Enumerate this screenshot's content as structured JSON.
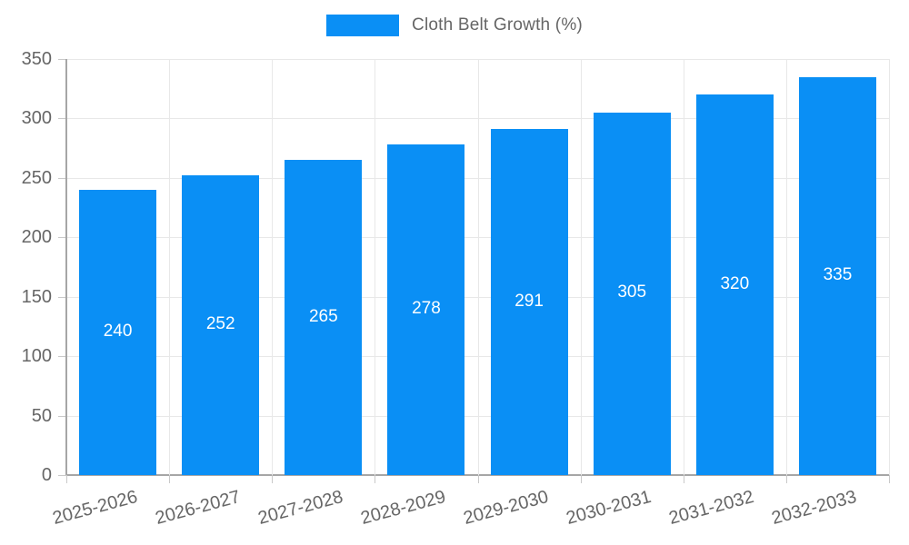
{
  "chart_data": {
    "type": "bar",
    "title": "",
    "legend": {
      "label": "Cloth Belt Growth (%)",
      "position": "top"
    },
    "categories": [
      "2025-2026",
      "2026-2027",
      "2027-2028",
      "2028-2029",
      "2029-2030",
      "2030-2031",
      "2031-2032",
      "2032-2033"
    ],
    "values": [
      240,
      252,
      265,
      278,
      291,
      305,
      320,
      335
    ],
    "value_labels": [
      "240",
      "252",
      "265",
      "278",
      "291",
      "305",
      "320",
      "335"
    ],
    "ylim": [
      0,
      350
    ],
    "ytick_step": 50,
    "yticks": [
      0,
      50,
      100,
      150,
      200,
      250,
      300,
      350
    ],
    "grid": true,
    "x_label_rotation_deg": -15,
    "colors": {
      "bar": "#0a8ff5",
      "value_label": "#ffffff",
      "axis_text": "#666666",
      "grid_line": "#e8e8e8",
      "axis_line": "#a6a6a6"
    }
  }
}
